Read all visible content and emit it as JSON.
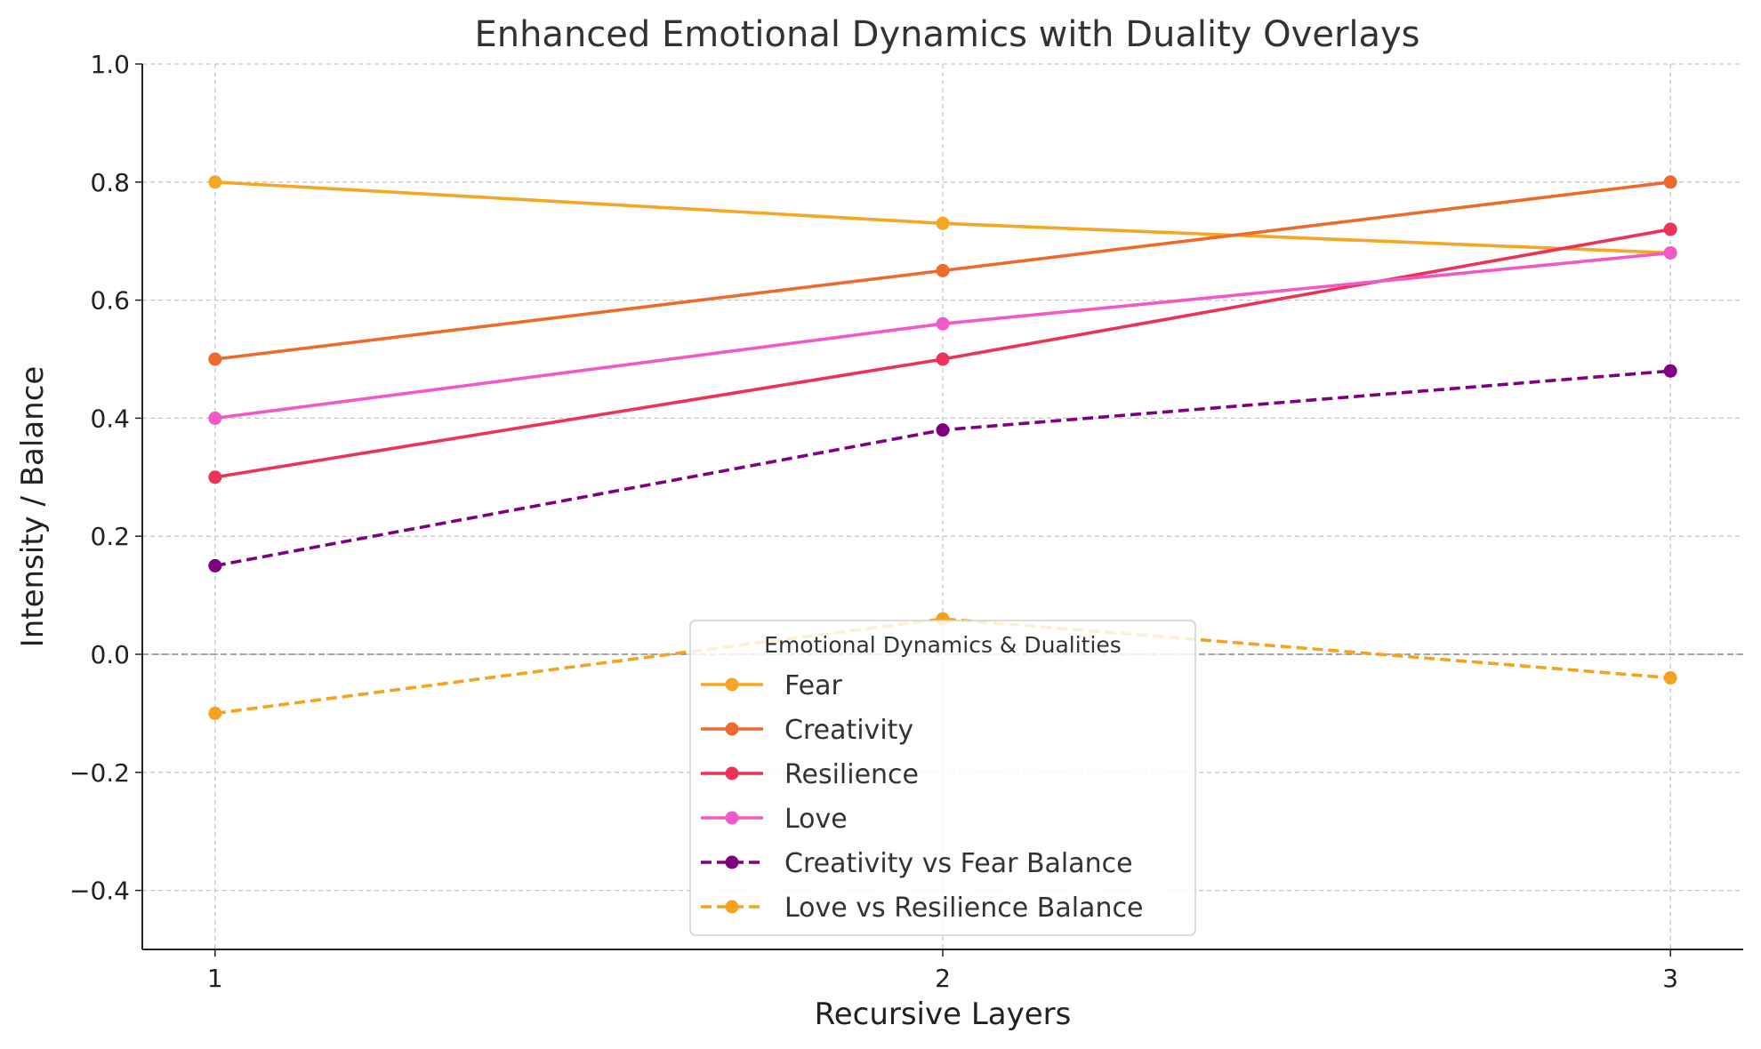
{
  "chart_data": {
    "type": "line",
    "title": "Enhanced Emotional Dynamics with Duality Overlays",
    "xlabel": "Recursive Layers",
    "ylabel": "Intensity / Balance",
    "x": [
      1,
      2,
      3
    ],
    "x_ticks": [
      "1",
      "2",
      "3"
    ],
    "xlim": [
      0.9,
      3.1
    ],
    "ylim": [
      -0.5,
      1.0
    ],
    "y_ticks": [
      "−0.4",
      "−0.2",
      "0.0",
      "0.2",
      "0.4",
      "0.6",
      "0.8",
      "1.0"
    ],
    "y_tick_values": [
      -0.4,
      -0.2,
      0.0,
      0.2,
      0.4,
      0.6,
      0.8,
      1.0
    ],
    "grid": true,
    "zero_line": true,
    "legend": {
      "title": "Emotional Dynamics & Dualities",
      "placement": "lower-center"
    },
    "series": [
      {
        "name": "Fear",
        "values": [
          0.8,
          0.73,
          0.68
        ],
        "color": "#f5a623",
        "style": "solid"
      },
      {
        "name": "Creativity",
        "values": [
          0.5,
          0.65,
          0.8
        ],
        "color": "#ee6a2c",
        "style": "solid"
      },
      {
        "name": "Resilience",
        "values": [
          0.3,
          0.5,
          0.72
        ],
        "color": "#ec3357",
        "style": "solid"
      },
      {
        "name": "Love",
        "values": [
          0.4,
          0.56,
          0.68
        ],
        "color": "#f159c6",
        "style": "solid"
      },
      {
        "name": "Creativity vs Fear Balance",
        "values": [
          0.15,
          0.38,
          0.48
        ],
        "color": "#800080",
        "style": "dashed"
      },
      {
        "name": "Love vs Resilience Balance",
        "values": [
          -0.1,
          0.06,
          -0.04
        ],
        "color": "#f5a31f",
        "style": "dashed"
      }
    ]
  }
}
